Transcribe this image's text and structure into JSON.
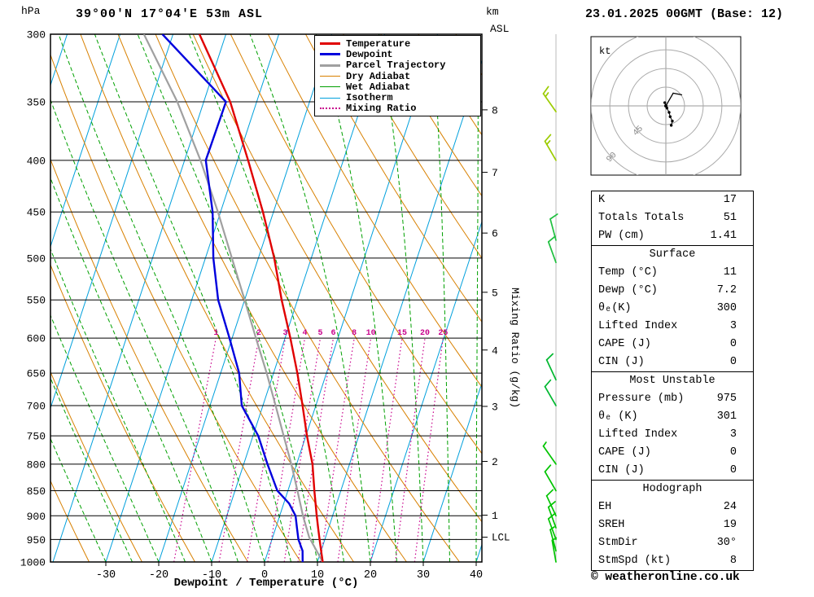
{
  "header": {
    "pressure_unit_label": "hPa",
    "station_title": "39°00'N 17°04'E 53m ASL",
    "km_unit_label": "km",
    "asl_label": "ASL",
    "datetime_title": "23.01.2025 00GMT (Base: 12)"
  },
  "axes": {
    "x_title": "Dewpoint / Temperature (°C)",
    "mixing_ratio_axis_title": "Mixing Ratio (g/kg)",
    "lcl_label": "LCL",
    "lcl_pressure_hpa": 945,
    "pressure_ticks_hpa": [
      300,
      350,
      400,
      450,
      500,
      550,
      600,
      650,
      700,
      750,
      800,
      850,
      900,
      950,
      1000
    ],
    "temp_ticks_c": [
      -30,
      -20,
      -10,
      0,
      10,
      20,
      30,
      40
    ],
    "km_ticks": [
      {
        "km": 1,
        "pressure_hpa": 898.7
      },
      {
        "km": 2,
        "pressure_hpa": 795.0
      },
      {
        "km": 3,
        "pressure_hpa": 701.2
      },
      {
        "km": 4,
        "pressure_hpa": 616.6
      },
      {
        "km": 5,
        "pressure_hpa": 540.5
      },
      {
        "km": 6,
        "pressure_hpa": 472.2
      },
      {
        "km": 7,
        "pressure_hpa": 411.1
      },
      {
        "km": 8,
        "pressure_hpa": 356.5
      }
    ]
  },
  "colors": {
    "temperature": "#e00000",
    "dewpoint": "#0000dd",
    "parcel": "#a0a0a0",
    "dry_adiabat": "#d88000",
    "wet_adiabat": "#00a000",
    "isotherm": "#00a0dc",
    "mixing_ratio": "#c8008c",
    "grid": "#000000",
    "wind_column": "#bbbbbb",
    "hodo_rings": "#aaaaaa"
  },
  "legend": {
    "items": [
      {
        "label": "Temperature",
        "color": "#e00000",
        "dash": "solid",
        "width": 3
      },
      {
        "label": "Dewpoint",
        "color": "#0000dd",
        "dash": "solid",
        "width": 3
      },
      {
        "label": "Parcel Trajectory",
        "color": "#a0a0a0",
        "dash": "solid",
        "width": 3
      },
      {
        "label": "Dry Adiabat",
        "color": "#d88000",
        "dash": "solid",
        "width": 1
      },
      {
        "label": "Wet Adiabat",
        "color": "#00a000",
        "dash": "solid",
        "width": 1
      },
      {
        "label": "Isotherm",
        "color": "#00a0dc",
        "dash": "solid",
        "width": 1
      },
      {
        "label": "Mixing Ratio",
        "color": "#c8008c",
        "dash": "dotted",
        "width": 2
      }
    ]
  },
  "chart_data": {
    "type": "skewt_log_p_sounding",
    "pressure_axis_hpa": {
      "min": 300,
      "max": 1000,
      "scale": "log"
    },
    "temperature_axis_c": {
      "min": -40,
      "max": 40,
      "skewed": true
    },
    "temperature_profile_p_c": [
      [
        1000,
        11
      ],
      [
        975,
        10
      ],
      [
        950,
        9
      ],
      [
        925,
        8
      ],
      [
        900,
        7
      ],
      [
        850,
        5
      ],
      [
        800,
        3
      ],
      [
        750,
        0.2
      ],
      [
        700,
        -2.5
      ],
      [
        650,
        -5.5
      ],
      [
        600,
        -9
      ],
      [
        550,
        -13
      ],
      [
        500,
        -17
      ],
      [
        450,
        -22
      ],
      [
        400,
        -28
      ],
      [
        350,
        -35
      ],
      [
        300,
        -45
      ]
    ],
    "dewpoint_profile_p_c": [
      [
        1000,
        7.2
      ],
      [
        975,
        6.5
      ],
      [
        950,
        5
      ],
      [
        925,
        4
      ],
      [
        900,
        3
      ],
      [
        875,
        1
      ],
      [
        850,
        -2
      ],
      [
        800,
        -5.5
      ],
      [
        750,
        -9
      ],
      [
        700,
        -14
      ],
      [
        650,
        -16.5
      ],
      [
        600,
        -20.5
      ],
      [
        550,
        -25
      ],
      [
        500,
        -28.5
      ],
      [
        450,
        -31.5
      ],
      [
        400,
        -36
      ],
      [
        350,
        -35.8
      ],
      [
        300,
        -52
      ]
    ],
    "parcel_profile_p_c": [
      [
        1000,
        11
      ],
      [
        945,
        6.9
      ],
      [
        900,
        4.4
      ],
      [
        850,
        1.8
      ],
      [
        800,
        -1
      ],
      [
        750,
        -4.2
      ],
      [
        700,
        -7.6
      ],
      [
        650,
        -11.3
      ],
      [
        600,
        -15.5
      ],
      [
        550,
        -20
      ],
      [
        500,
        -25
      ],
      [
        450,
        -30.5
      ],
      [
        400,
        -37
      ],
      [
        350,
        -45
      ],
      [
        300,
        -55.5
      ]
    ],
    "mixing_ratio_lines_g_kg": [
      1,
      2,
      3,
      4,
      5,
      6,
      8,
      10,
      15,
      20,
      25
    ],
    "isotherms_c": {
      "min": -80,
      "max": 40,
      "step": 10
    },
    "dry_adiabats_k": {
      "min": 240,
      "max": 400,
      "step": 10
    },
    "wet_adiabats_c_at_1000hpa": {
      "min": -30,
      "max": 40,
      "step": 5
    },
    "winds": [
      {
        "pressure_hpa": 1000,
        "dir_deg": 350,
        "speed_kt": 5,
        "color": "#00c400"
      },
      {
        "pressure_hpa": 975,
        "dir_deg": 345,
        "speed_kt": 5,
        "color": "#00c400"
      },
      {
        "pressure_hpa": 950,
        "dir_deg": 340,
        "speed_kt": 10,
        "color": "#00c400"
      },
      {
        "pressure_hpa": 925,
        "dir_deg": 340,
        "speed_kt": 10,
        "color": "#00c400"
      },
      {
        "pressure_hpa": 900,
        "dir_deg": 335,
        "speed_kt": 10,
        "color": "#00c400"
      },
      {
        "pressure_hpa": 850,
        "dir_deg": 330,
        "speed_kt": 10,
        "color": "#00c400"
      },
      {
        "pressure_hpa": 800,
        "dir_deg": 325,
        "speed_kt": 5,
        "color": "#00c400"
      },
      {
        "pressure_hpa": 700,
        "dir_deg": 330,
        "speed_kt": 10,
        "color": "#00b830"
      },
      {
        "pressure_hpa": 660,
        "dir_deg": 335,
        "speed_kt": 10,
        "color": "#00b830"
      },
      {
        "pressure_hpa": 505,
        "dir_deg": 340,
        "speed_kt": 10,
        "color": "#20c040"
      },
      {
        "pressure_hpa": 480,
        "dir_deg": 345,
        "speed_kt": 10,
        "color": "#20c040"
      },
      {
        "pressure_hpa": 400,
        "dir_deg": 330,
        "speed_kt": 15,
        "color": "#9ccc00"
      },
      {
        "pressure_hpa": 358,
        "dir_deg": 325,
        "speed_kt": 15,
        "color": "#9ccc00"
      }
    ]
  },
  "hodograph": {
    "unit_label": "kt",
    "ring_radii_kt": [
      22.5,
      45,
      67.5,
      90
    ],
    "ring_labels": [
      {
        "text": "45",
        "radius_kt": 45
      },
      {
        "text": "90",
        "radius_kt": 90
      }
    ],
    "trace_uv_kt": [
      [
        -1,
        3
      ],
      [
        1,
        -2
      ],
      [
        3,
        -6
      ],
      [
        4,
        -10
      ],
      [
        6,
        -14
      ],
      [
        5,
        -18
      ]
    ],
    "storm_motion": {
      "dir_deg": 30,
      "speed_kt": 8
    }
  },
  "tables": {
    "indices": {
      "rows": [
        {
          "label": "K",
          "value": "17"
        },
        {
          "label": "Totals Totals",
          "value": "51"
        },
        {
          "label": "PW (cm)",
          "value": "1.41"
        }
      ]
    },
    "surface": {
      "title": "Surface",
      "rows": [
        {
          "label": "Temp (°C)",
          "value": "11"
        },
        {
          "label": "Dewp (°C)",
          "value": "7.2"
        },
        {
          "label": "θₑ(K)",
          "value": "300"
        },
        {
          "label": "Lifted Index",
          "value": "3"
        },
        {
          "label": "CAPE (J)",
          "value": "0"
        },
        {
          "label": "CIN (J)",
          "value": "0"
        }
      ]
    },
    "most_unstable": {
      "title": "Most Unstable",
      "rows": [
        {
          "label": "Pressure (mb)",
          "value": "975"
        },
        {
          "label": "θₑ (K)",
          "value": "301"
        },
        {
          "label": "Lifted Index",
          "value": "3"
        },
        {
          "label": "CAPE (J)",
          "value": "0"
        },
        {
          "label": "CIN (J)",
          "value": "0"
        }
      ]
    },
    "hodograph_table": {
      "title": "Hodograph",
      "rows": [
        {
          "label": "EH",
          "value": "24"
        },
        {
          "label": "SREH",
          "value": "19"
        },
        {
          "label": "StmDir",
          "value": "30°"
        },
        {
          "label": "StmSpd (kt)",
          "value": "8"
        }
      ]
    }
  },
  "footer": {
    "copyright": "© weatheronline.co.uk"
  }
}
